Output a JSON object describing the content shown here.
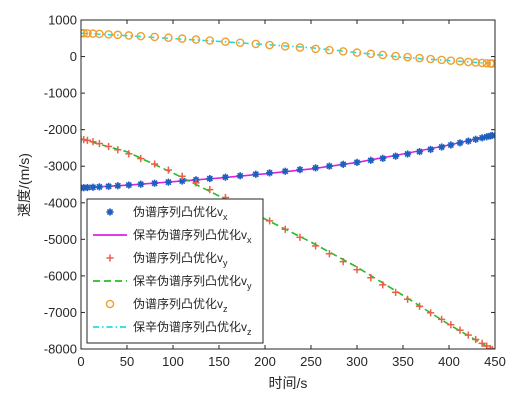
{
  "chart_data": {
    "type": "line",
    "xlabel": "时间/s",
    "ylabel": "速度/(m/s)",
    "xlim": [
      0,
      450
    ],
    "ylim": [
      -8000,
      1000
    ],
    "xticks": [
      0,
      50,
      100,
      150,
      200,
      250,
      300,
      350,
      400,
      450
    ],
    "yticks": [
      -8000,
      -7000,
      -6000,
      -5000,
      -4000,
      -3000,
      -2000,
      -1000,
      0,
      1000
    ],
    "xtick_labels": [
      "0",
      "50",
      "100",
      "150",
      "200",
      "250",
      "300",
      "350",
      "400",
      "450"
    ],
    "ytick_labels": [
      "-8000",
      "-7000",
      "-6000",
      "-5000",
      "-4000",
      "-3000",
      "-2000",
      "-1000",
      "0",
      "1000"
    ],
    "grid": false,
    "legend_position": "bottom-left",
    "marker_x": [
      0,
      3,
      7,
      13,
      20,
      30,
      40,
      52,
      65,
      80,
      95,
      110,
      125,
      140,
      157,
      173,
      190,
      205,
      222,
      238,
      255,
      270,
      285,
      300,
      315,
      328,
      342,
      355,
      368,
      380,
      392,
      402,
      412,
      421,
      429,
      436,
      441,
      445,
      447
    ],
    "series": [
      {
        "name": "伪谱序列凸优化",
        "sub": "x",
        "kind": "marker",
        "marker": "asterisk",
        "color": "#1f5fbf",
        "values": [
          -3590,
          -3588,
          -3583,
          -3575,
          -3565,
          -3550,
          -3535,
          -3515,
          -3492,
          -3465,
          -3436,
          -3405,
          -3372,
          -3338,
          -3300,
          -3262,
          -3220,
          -3182,
          -3138,
          -3094,
          -3045,
          -2998,
          -2948,
          -2895,
          -2838,
          -2785,
          -2725,
          -2665,
          -2600,
          -2540,
          -2475,
          -2420,
          -2362,
          -2312,
          -2264,
          -2224,
          -2195,
          -2171,
          -2158
        ]
      },
      {
        "name": "保辛伪谱序列凸优化",
        "sub": "x",
        "kind": "line",
        "dash": "solid",
        "color": "#e020e0",
        "x": [
          0,
          50,
          100,
          150,
          200,
          250,
          300,
          350,
          400,
          447
        ],
        "values": [
          -3590,
          -3520,
          -3424,
          -3325,
          -3208,
          -3073,
          -2895,
          -2665,
          -2420,
          -2158
        ]
      },
      {
        "name": "伪谱序列凸优化",
        "sub": "y",
        "kind": "marker",
        "marker": "plus",
        "color": "#e8604a",
        "values": [
          -2260,
          -2272,
          -2292,
          -2330,
          -2380,
          -2460,
          -2550,
          -2660,
          -2790,
          -2940,
          -3105,
          -3275,
          -3455,
          -3640,
          -3855,
          -4065,
          -4290,
          -4495,
          -4725,
          -4945,
          -5180,
          -5395,
          -5610,
          -5830,
          -6050,
          -6245,
          -6450,
          -6640,
          -6830,
          -7010,
          -7190,
          -7335,
          -7485,
          -7620,
          -7740,
          -7845,
          -7920,
          -7985,
          -8015
        ]
      },
      {
        "name": "保辛伪谱序列凸优化",
        "sub": "y",
        "kind": "line",
        "dash": "dashed",
        "color": "#22c022",
        "x": [
          0,
          50,
          100,
          150,
          200,
          250,
          300,
          350,
          400,
          447
        ],
        "values": [
          -2260,
          -2605,
          -3185,
          -3815,
          -4445,
          -5075,
          -5760,
          -6530,
          -7330,
          -8015
        ]
      },
      {
        "name": "伪谱序列凸优化",
        "sub": "z",
        "kind": "marker",
        "marker": "circle",
        "color": "#f0a030",
        "values": [
          640,
          638,
          634,
          628,
          620,
          607,
          594,
          577,
          559,
          538,
          515,
          491,
          466,
          439,
          408,
          378,
          345,
          314,
          280,
          246,
          210,
          176,
          142,
          108,
          74,
          45,
          14,
          -14,
          -42,
          -67,
          -91,
          -111,
          -131,
          -148,
          -162,
          -174,
          -183,
          -189,
          -192
        ]
      },
      {
        "name": "保辛伪谱序列凸优化",
        "sub": "z",
        "kind": "line",
        "dash": "dashdot",
        "color": "#22dede",
        "x": [
          0,
          50,
          100,
          150,
          200,
          250,
          300,
          350,
          400,
          447
        ],
        "values": [
          640,
          570,
          492,
          414,
          330,
          242,
          108,
          -24,
          -111,
          -192
        ]
      }
    ]
  }
}
